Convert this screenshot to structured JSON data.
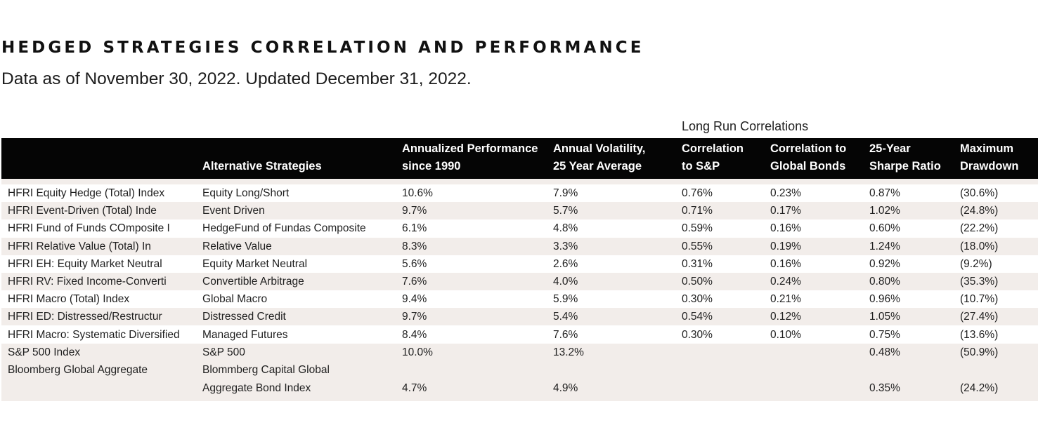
{
  "title": "HEDGED STRATEGIES CORRELATION AND PERFORMANCE",
  "subtitle": "Data as of November 30, 2022. Updated December 31, 2022.",
  "group_label": "Long Run Correlations",
  "headers": {
    "strategies": "Alternative Strategies",
    "annualized_1": "Annualized Performance",
    "annualized_2": "since 1990",
    "volatility_1": "Annual Volatility,",
    "volatility_2": "25 Year Average",
    "corr_sp_1": "Correlation",
    "corr_sp_2": "to S&P",
    "corr_bonds_1": "Correlation to",
    "corr_bonds_2": "Global Bonds",
    "sharpe_1": "25-Year",
    "sharpe_2": "Sharpe Ratio",
    "drawdown_1": "Maximum",
    "drawdown_2": "Drawdown"
  },
  "rows": [
    {
      "index": "HFRI Equity Hedge (Total) Index",
      "strategy": "Equity Long/Short",
      "perf": "10.6%",
      "vol": "7.9%",
      "corr_sp": "0.76%",
      "corr_bonds": "0.23%",
      "sharpe": "0.87%",
      "drawdown": "(30.6%)"
    },
    {
      "index": "HFRI Event-Driven (Total) Inde",
      "strategy": "Event  Driven",
      "perf": "9.7%",
      "vol": "5.7%",
      "corr_sp": "0.71%",
      "corr_bonds": "0.17%",
      "sharpe": "1.02%",
      "drawdown": "(24.8%)"
    },
    {
      "index": "HFRI Fund of Funds COmposite I",
      "strategy": "HedgeFund of Fundas Composite",
      "perf": "6.1%",
      "vol": "4.8%",
      "corr_sp": "0.59%",
      "corr_bonds": "0.16%",
      "sharpe": "0.60%",
      "drawdown": "(22.2%)"
    },
    {
      "index": "HFRI Relative Value (Total) In",
      "strategy": "Relative Value",
      "perf": "8.3%",
      "vol": "3.3%",
      "corr_sp": "0.55%",
      "corr_bonds": "0.19%",
      "sharpe": "1.24%",
      "drawdown": "(18.0%)"
    },
    {
      "index": "HFRI EH: Equity Market Neutral",
      "strategy": "Equity Market Neutral",
      "perf": "5.6%",
      "vol": "2.6%",
      "corr_sp": "0.31%",
      "corr_bonds": "0.16%",
      "sharpe": "0.92%",
      "drawdown": "(9.2%)"
    },
    {
      "index": "HFRI RV: Fixed Income-Converti",
      "strategy": "Convertible Arbitrage",
      "perf": "7.6%",
      "vol": "4.0%",
      "corr_sp": "0.50%",
      "corr_bonds": "0.24%",
      "sharpe": "0.80%",
      "drawdown": "(35.3%)"
    },
    {
      "index": "HFRI Macro (Total) Index",
      "strategy": "Global Macro",
      "perf": "9.4%",
      "vol": "5.9%",
      "corr_sp": "0.30%",
      "corr_bonds": "0.21%",
      "sharpe": "0.96%",
      "drawdown": "(10.7%)"
    },
    {
      "index": "HFRI ED: Distressed/Restructur",
      "strategy": "Distressed Credit",
      "perf": "9.7%",
      "vol": "5.4%",
      "corr_sp": "0.54%",
      "corr_bonds": "0.12%",
      "sharpe": "1.05%",
      "drawdown": "(27.4%)"
    },
    {
      "index": "HFRI Macro: Systematic Diversified",
      "strategy": "Managed Futures",
      "perf": "8.4%",
      "vol": "7.6%",
      "corr_sp": "0.30%",
      "corr_bonds": "0.10%",
      "sharpe": "0.75%",
      "drawdown": "(13.6%)"
    },
    {
      "index": "S&P 500 Index",
      "strategy": "S&P 500",
      "perf": "10.0%",
      "vol": "13.2%",
      "corr_sp": "",
      "corr_bonds": "",
      "sharpe": "0.48%",
      "drawdown": "(50.9%)"
    }
  ],
  "last_row": {
    "index": "Bloomberg Global Aggregate",
    "strategy_1": "Blommberg Capital Global",
    "strategy_2": "Aggregate Bond Index",
    "perf": "4.7%",
    "vol": "4.9%",
    "corr_sp": "",
    "corr_bonds": "",
    "sharpe": "0.35%",
    "drawdown": "(24.2%)"
  }
}
